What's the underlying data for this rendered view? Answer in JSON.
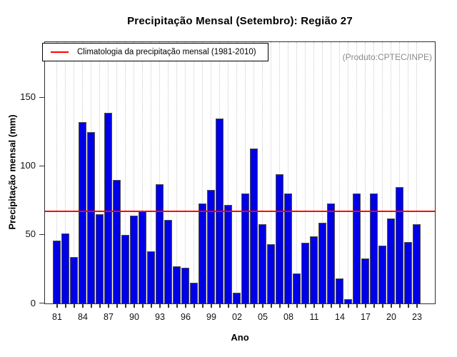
{
  "chart_data": {
    "type": "bar",
    "title": "Precipitação Mensal (Setembro): Região 27",
    "xlabel": "Ano",
    "ylabel": "Precipitação mensal (mm)",
    "categories": [
      "1981",
      "1982",
      "1983",
      "1984",
      "1985",
      "1986",
      "1987",
      "1988",
      "1989",
      "1990",
      "1991",
      "1992",
      "1993",
      "1994",
      "1995",
      "1996",
      "1997",
      "1998",
      "1999",
      "2000",
      "2001",
      "2002",
      "2003",
      "2004",
      "2005",
      "2006",
      "2007",
      "2008",
      "2009",
      "2010",
      "2011",
      "2012",
      "2013",
      "2014",
      "2015",
      "2016",
      "2017",
      "2018",
      "2019",
      "2020",
      "2021",
      "2022",
      "2023"
    ],
    "values": [
      46,
      51,
      34,
      132,
      125,
      65,
      139,
      90,
      50,
      64,
      67,
      38,
      87,
      61,
      27,
      26,
      15,
      73,
      83,
      135,
      72,
      8,
      80,
      113,
      58,
      43,
      94,
      80,
      22,
      44,
      49,
      59,
      73,
      18,
      3,
      80,
      33,
      80,
      42,
      62,
      85,
      45,
      58
    ],
    "climatology_line_value": 67,
    "ylim": [
      0,
      190
    ],
    "yticks": [
      0,
      50,
      100,
      150
    ],
    "xtick_labels": [
      "81",
      "84",
      "87",
      "90",
      "93",
      "96",
      "99",
      "02",
      "05",
      "08",
      "11",
      "14",
      "17",
      "20",
      "23"
    ],
    "xtick_label_every": 3,
    "grid": "vertical-dotted",
    "legend_position": "top-left",
    "legend_label": "Climatologia da precipitação mensal (1981-2010)",
    "annotation": "(Produto:CPTEC/INPE)",
    "colors": {
      "bar_fill": "#0000e6",
      "bar_border": "#4d4d4d",
      "climatology_line": "#ff0000",
      "gridline": "#cbcbcb",
      "annotation_text": "#8a8a8a"
    }
  }
}
